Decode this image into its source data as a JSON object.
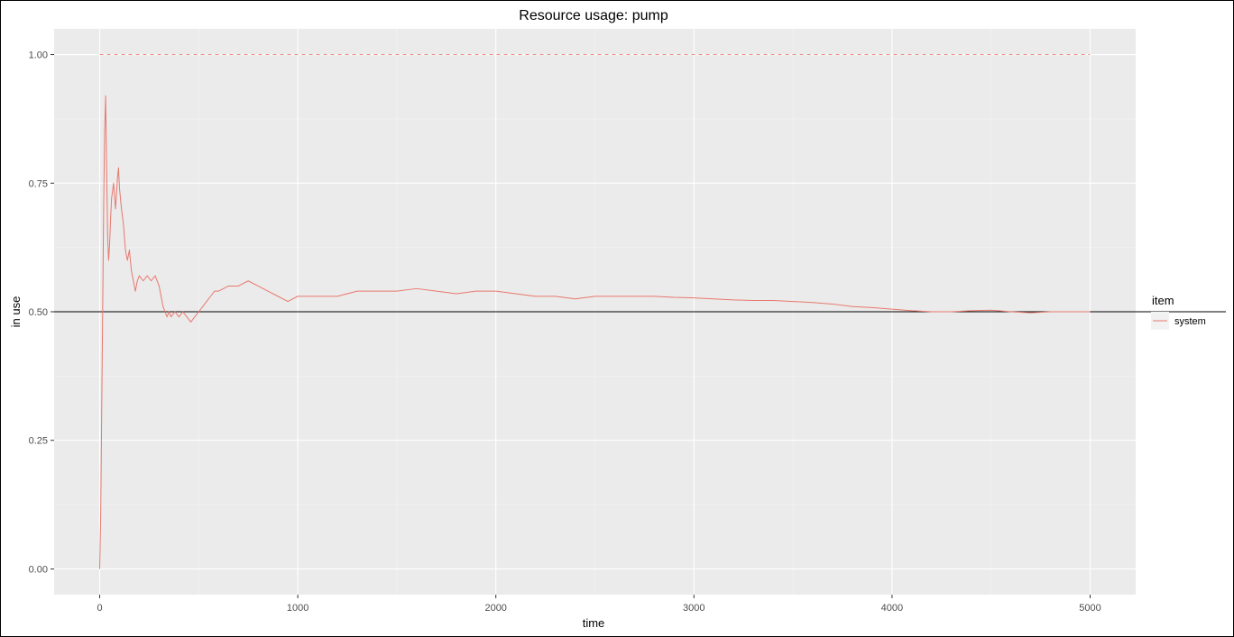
{
  "chart_data": {
    "type": "line",
    "title": "Resource usage: pump",
    "xlabel": "time",
    "ylabel": "in use",
    "xlim": [
      -230,
      5230
    ],
    "ylim": [
      -0.05,
      1.05
    ],
    "x_ticks": [
      0,
      1000,
      2000,
      3000,
      4000,
      5000
    ],
    "x_minor_ticks": [
      500,
      1500,
      2500,
      3500,
      4500
    ],
    "y_ticks": [
      0.0,
      0.25,
      0.5,
      0.75,
      1.0
    ],
    "y_tick_labels": [
      "0.00",
      "0.25",
      "0.50",
      "0.75",
      "1.00"
    ],
    "y_minor_ticks": [
      0.125,
      0.375,
      0.625,
      0.875
    ],
    "grid": true,
    "legend": {
      "title": "item",
      "placement": "right",
      "entries": [
        {
          "label": "system",
          "color": "#e8786e"
        }
      ]
    },
    "reference_lines": [
      {
        "type": "dashed",
        "y": 1.0,
        "x_range": [
          0,
          5000
        ],
        "color": "#f08f86"
      },
      {
        "type": "solid",
        "y": 0.5,
        "color": "#000000"
      }
    ],
    "series": [
      {
        "name": "system",
        "color": "#e8786e",
        "points": [
          [
            0,
            0.0
          ],
          [
            5,
            0.1
          ],
          [
            10,
            0.3
          ],
          [
            15,
            0.5
          ],
          [
            20,
            0.7
          ],
          [
            25,
            0.85
          ],
          [
            30,
            0.92
          ],
          [
            35,
            0.78
          ],
          [
            40,
            0.65
          ],
          [
            45,
            0.6
          ],
          [
            50,
            0.63
          ],
          [
            55,
            0.68
          ],
          [
            60,
            0.72
          ],
          [
            70,
            0.75
          ],
          [
            80,
            0.7
          ],
          [
            90,
            0.76
          ],
          [
            95,
            0.78
          ],
          [
            100,
            0.74
          ],
          [
            110,
            0.7
          ],
          [
            120,
            0.67
          ],
          [
            130,
            0.62
          ],
          [
            140,
            0.6
          ],
          [
            150,
            0.62
          ],
          [
            160,
            0.58
          ],
          [
            170,
            0.56
          ],
          [
            180,
            0.54
          ],
          [
            190,
            0.56
          ],
          [
            200,
            0.57
          ],
          [
            220,
            0.56
          ],
          [
            240,
            0.57
          ],
          [
            260,
            0.56
          ],
          [
            280,
            0.57
          ],
          [
            300,
            0.55
          ],
          [
            310,
            0.53
          ],
          [
            320,
            0.51
          ],
          [
            330,
            0.5
          ],
          [
            340,
            0.49
          ],
          [
            350,
            0.5
          ],
          [
            360,
            0.49
          ],
          [
            380,
            0.5
          ],
          [
            400,
            0.49
          ],
          [
            420,
            0.5
          ],
          [
            440,
            0.49
          ],
          [
            460,
            0.48
          ],
          [
            480,
            0.49
          ],
          [
            500,
            0.5
          ],
          [
            520,
            0.51
          ],
          [
            540,
            0.52
          ],
          [
            560,
            0.53
          ],
          [
            580,
            0.54
          ],
          [
            600,
            0.54
          ],
          [
            650,
            0.55
          ],
          [
            700,
            0.55
          ],
          [
            750,
            0.56
          ],
          [
            800,
            0.55
          ],
          [
            850,
            0.54
          ],
          [
            900,
            0.53
          ],
          [
            950,
            0.52
          ],
          [
            1000,
            0.53
          ],
          [
            1100,
            0.53
          ],
          [
            1200,
            0.53
          ],
          [
            1300,
            0.54
          ],
          [
            1400,
            0.54
          ],
          [
            1500,
            0.54
          ],
          [
            1600,
            0.545
          ],
          [
            1700,
            0.54
          ],
          [
            1800,
            0.535
          ],
          [
            1900,
            0.54
          ],
          [
            2000,
            0.54
          ],
          [
            2100,
            0.535
          ],
          [
            2200,
            0.53
          ],
          [
            2300,
            0.53
          ],
          [
            2400,
            0.525
          ],
          [
            2500,
            0.53
          ],
          [
            2600,
            0.53
          ],
          [
            2700,
            0.53
          ],
          [
            2800,
            0.53
          ],
          [
            2900,
            0.528
          ],
          [
            3000,
            0.527
          ],
          [
            3100,
            0.525
          ],
          [
            3200,
            0.523
          ],
          [
            3300,
            0.522
          ],
          [
            3400,
            0.522
          ],
          [
            3500,
            0.52
          ],
          [
            3600,
            0.518
          ],
          [
            3700,
            0.515
          ],
          [
            3800,
            0.51
          ],
          [
            3900,
            0.508
          ],
          [
            4000,
            0.505
          ],
          [
            4100,
            0.502
          ],
          [
            4200,
            0.5
          ],
          [
            4300,
            0.5
          ],
          [
            4400,
            0.502
          ],
          [
            4500,
            0.503
          ],
          [
            4600,
            0.5
          ],
          [
            4700,
            0.498
          ],
          [
            4800,
            0.5
          ],
          [
            4900,
            0.5
          ],
          [
            5000,
            0.5
          ]
        ]
      }
    ]
  }
}
